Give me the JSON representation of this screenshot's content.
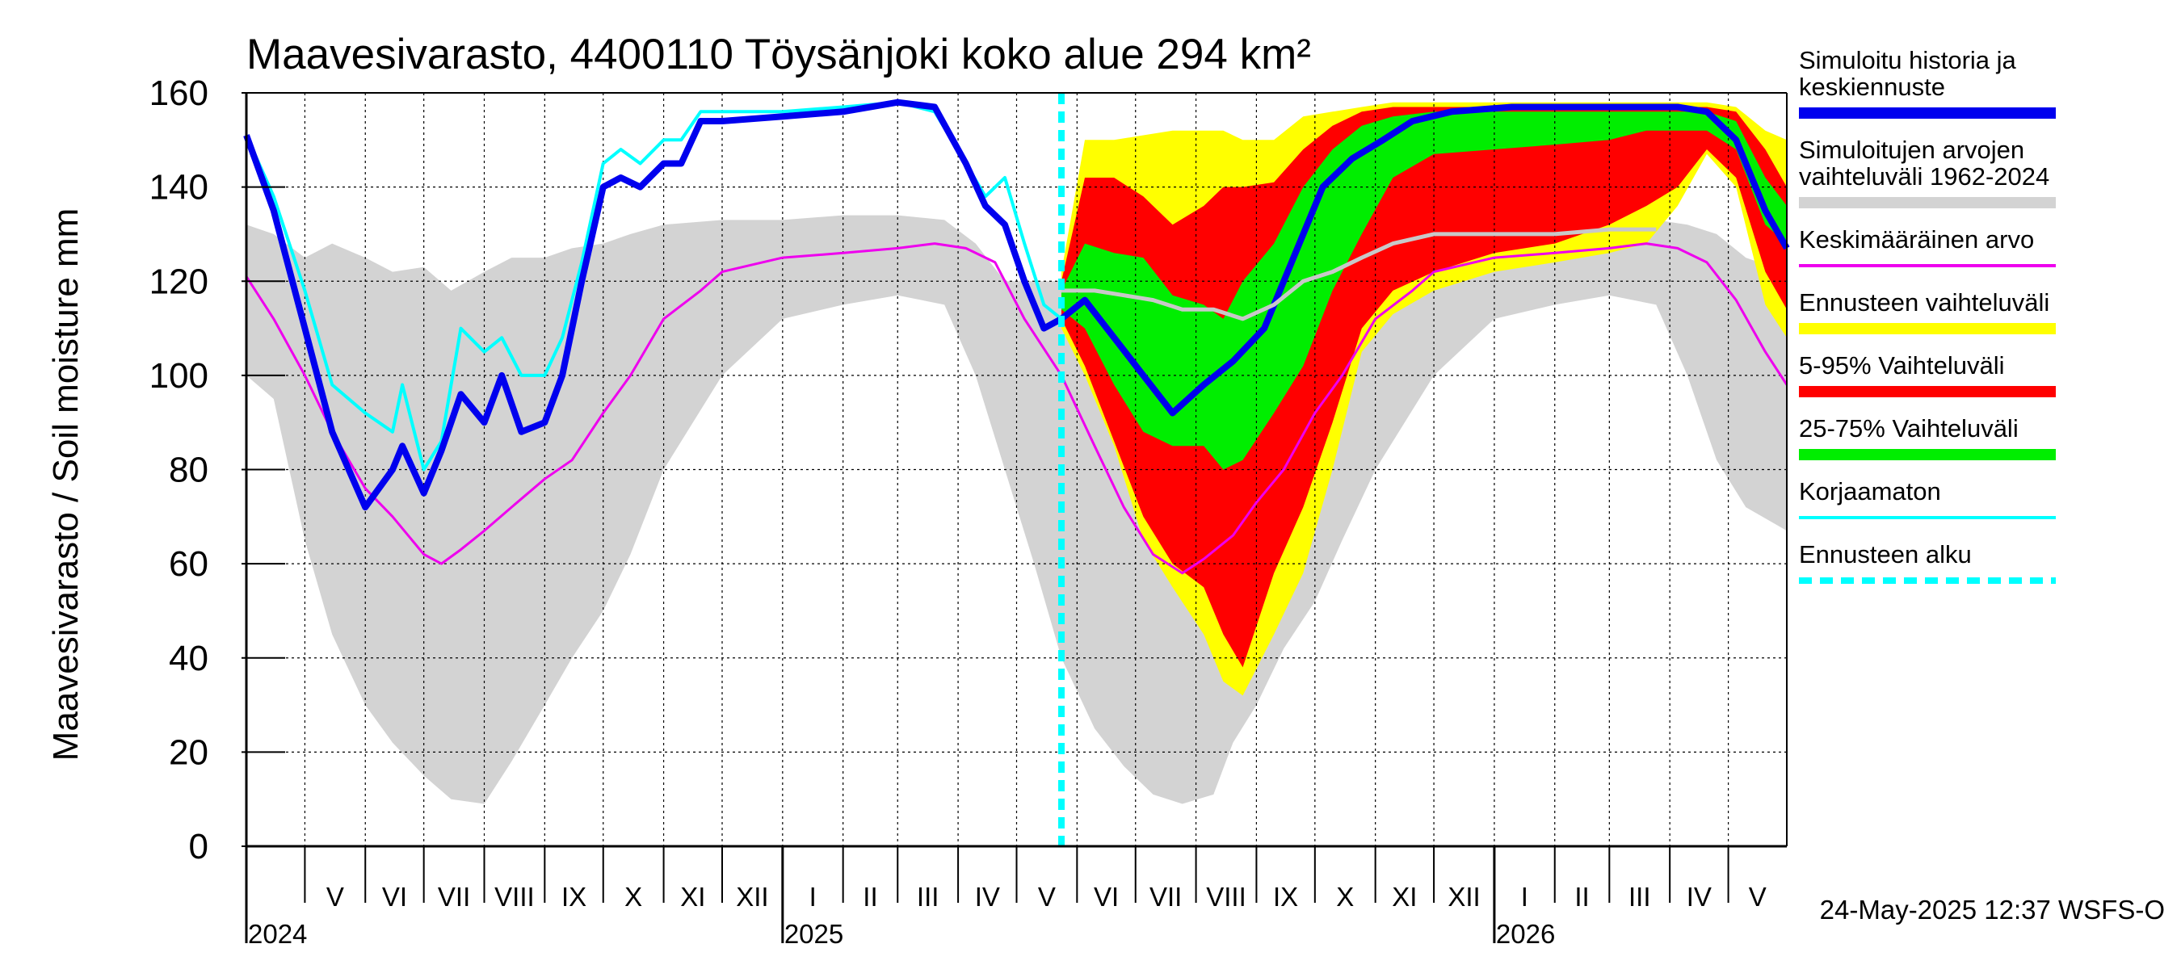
{
  "chart_data": {
    "type": "line",
    "title": "Maavesivarasto, 4400110 Töysänjoki koko alue 294 km²",
    "ylabel": "Maavesivarasto / Soil moisture   mm",
    "ylim": [
      0,
      160
    ],
    "yticks": [
      0,
      20,
      40,
      60,
      80,
      100,
      120,
      140,
      160
    ],
    "x_range": [
      "2024-04-01",
      "2026-05-31"
    ],
    "grid": true,
    "months": [
      "V",
      "VI",
      "VII",
      "VIII",
      "IX",
      "X",
      "XI",
      "XII",
      "I",
      "II",
      "III",
      "IV",
      "V",
      "VI",
      "VII",
      "VIII",
      "IX",
      "X",
      "XI",
      "XII",
      "I",
      "II",
      "III",
      "IV",
      "V"
    ],
    "years": [
      "2024",
      "2025",
      "2026"
    ],
    "forecast_start": "2025-05-24",
    "timestamp": "24-May-2025 12:37 WSFS-O",
    "legend": [
      {
        "label": [
          "Simuloitu historia ja",
          "keskiennuste"
        ],
        "color": "#0000ee",
        "style": "thick"
      },
      {
        "label": [
          "Simuloitujen arvojen",
          "vaihteluväli 1962-2024"
        ],
        "color": "#d3d3d3",
        "style": "thick"
      },
      {
        "label": [
          "Keskimääräinen arvo"
        ],
        "color": "#ee00ee",
        "style": "thin"
      },
      {
        "label": [
          "Ennusteen vaihteluväli"
        ],
        "color": "#ffff00",
        "style": "thick"
      },
      {
        "label": [
          "5-95% Vaihteluväli"
        ],
        "color": "#ff0000",
        "style": "thick"
      },
      {
        "label": [
          "25-75% Vaihteluväli"
        ],
        "color": "#00ee00",
        "style": "thick"
      },
      {
        "label": [
          "Korjaamaton"
        ],
        "color": "#00ffff",
        "style": "thin"
      },
      {
        "label": [
          "Ennusteen alku"
        ],
        "color": "#00ffff",
        "style": "dashed"
      }
    ],
    "series": [
      {
        "name": "Simuloitujen arvojen vaihteluväli 1962-2024",
        "kind": "band",
        "color": "#d3d3d3",
        "x": [
          "2024-04-01",
          "2024-04-15",
          "2024-05-01",
          "2024-05-15",
          "2024-06-01",
          "2024-06-15",
          "2024-07-01",
          "2024-07-15",
          "2024-08-01",
          "2024-08-15",
          "2024-09-01",
          "2024-09-15",
          "2024-10-01",
          "2024-10-15",
          "2024-11-01",
          "2024-12-01",
          "2025-01-01",
          "2025-02-01",
          "2025-03-01",
          "2025-03-25",
          "2025-04-10",
          "2025-04-25",
          "2025-05-10",
          "2025-05-24",
          "2025-06-10",
          "2025-06-25",
          "2025-07-10",
          "2025-07-25",
          "2025-08-10",
          "2025-08-20",
          "2025-09-01",
          "2025-09-15",
          "2025-10-01",
          "2025-10-15",
          "2025-11-01",
          "2025-12-01",
          "2026-01-01",
          "2026-02-01",
          "2026-03-01",
          "2026-03-25",
          "2026-04-10",
          "2026-04-25",
          "2026-05-10",
          "2026-05-31"
        ],
        "lower": [
          100,
          95,
          65,
          45,
          30,
          22,
          15,
          10,
          9,
          18,
          30,
          40,
          50,
          62,
          80,
          100,
          112,
          115,
          117,
          115,
          100,
          80,
          60,
          40,
          25,
          17,
          11,
          9,
          11,
          22,
          30,
          42,
          52,
          65,
          80,
          100,
          112,
          115,
          117,
          115,
          100,
          82,
          72,
          67
        ],
        "upper": [
          132,
          130,
          125,
          128,
          125,
          122,
          123,
          118,
          122,
          125,
          125,
          127,
          128,
          130,
          132,
          133,
          133,
          134,
          134,
          133,
          128,
          120,
          120,
          120,
          126,
          128,
          128,
          128,
          126,
          125,
          126,
          128,
          130,
          131,
          132,
          133,
          133,
          134,
          134,
          133,
          132,
          130,
          125,
          122
        ]
      },
      {
        "name": "Ennusteen vaihteluväli",
        "kind": "band",
        "color": "#ffff00",
        "x": [
          "2025-05-24",
          "2025-06-05",
          "2025-06-20",
          "2025-07-05",
          "2025-07-20",
          "2025-08-05",
          "2025-08-15",
          "2025-08-25",
          "2025-09-10",
          "2025-09-25",
          "2025-10-10",
          "2025-10-25",
          "2025-11-10",
          "2025-12-01",
          "2026-01-01",
          "2026-02-01",
          "2026-03-01",
          "2026-03-20",
          "2026-04-05",
          "2026-04-20",
          "2026-05-05",
          "2026-05-20",
          "2026-05-31"
        ],
        "lower": [
          110,
          100,
          85,
          65,
          55,
          45,
          35,
          32,
          45,
          58,
          80,
          105,
          113,
          118,
          122,
          124,
          126,
          128,
          136,
          147,
          140,
          115,
          108
        ],
        "upper": [
          122,
          150,
          150,
          151,
          152,
          152,
          152,
          150,
          150,
          155,
          156,
          157,
          158,
          158,
          158,
          158,
          158,
          158,
          158,
          158,
          157,
          152,
          150
        ]
      },
      {
        "name": "5-95% Vaihteluväli",
        "kind": "band",
        "color": "#ff0000",
        "x": [
          "2025-05-24",
          "2025-06-05",
          "2025-06-20",
          "2025-07-05",
          "2025-07-20",
          "2025-08-05",
          "2025-08-15",
          "2025-08-25",
          "2025-09-10",
          "2025-09-25",
          "2025-10-10",
          "2025-10-25",
          "2025-11-10",
          "2025-12-01",
          "2026-01-01",
          "2026-02-01",
          "2026-03-01",
          "2026-03-20",
          "2026-04-05",
          "2026-04-20",
          "2026-05-05",
          "2026-05-20",
          "2026-05-31"
        ],
        "lower": [
          112,
          102,
          86,
          70,
          60,
          55,
          45,
          38,
          58,
          72,
          90,
          110,
          118,
          122,
          126,
          128,
          132,
          136,
          140,
          148,
          142,
          122,
          114
        ],
        "upper": [
          120,
          142,
          142,
          138,
          132,
          136,
          140,
          140,
          141,
          148,
          153,
          156,
          157,
          157,
          157,
          157,
          157,
          157,
          157,
          157,
          156,
          148,
          140
        ]
      },
      {
        "name": "25-75% Vaihteluväli",
        "kind": "band",
        "color": "#00ee00",
        "x": [
          "2025-05-24",
          "2025-06-05",
          "2025-06-20",
          "2025-07-05",
          "2025-07-20",
          "2025-08-05",
          "2025-08-15",
          "2025-08-25",
          "2025-09-10",
          "2025-09-25",
          "2025-10-10",
          "2025-10-25",
          "2025-11-10",
          "2025-12-01",
          "2026-01-01",
          "2026-02-01",
          "2026-03-01",
          "2026-03-20",
          "2026-04-05",
          "2026-04-20",
          "2026-05-05",
          "2026-05-20",
          "2026-05-31"
        ],
        "lower": [
          114,
          110,
          98,
          88,
          85,
          85,
          80,
          82,
          92,
          102,
          118,
          130,
          142,
          147,
          148,
          149,
          150,
          152,
          152,
          152,
          148,
          132,
          128
        ],
        "upper": [
          118,
          128,
          126,
          125,
          117,
          115,
          112,
          120,
          128,
          140,
          148,
          153,
          155,
          156,
          156,
          156,
          156,
          156,
          156,
          156,
          154,
          142,
          136
        ]
      },
      {
        "name": "Keskimääräinen arvo",
        "kind": "line",
        "color": "#ee00ee",
        "width": 3,
        "x": [
          "2024-04-01",
          "2024-04-15",
          "2024-05-01",
          "2024-05-15",
          "2024-06-01",
          "2024-06-15",
          "2024-07-01",
          "2024-07-10",
          "2024-07-20",
          "2024-08-01",
          "2024-08-15",
          "2024-09-01",
          "2024-09-15",
          "2024-10-01",
          "2024-10-15",
          "2024-11-01",
          "2024-11-20",
          "2024-12-01",
          "2025-01-01",
          "2025-02-01",
          "2025-03-01",
          "2025-03-20",
          "2025-04-05",
          "2025-04-20",
          "2025-05-05",
          "2025-05-24",
          "2025-06-10",
          "2025-06-25",
          "2025-07-10",
          "2025-07-25",
          "2025-08-05",
          "2025-08-20",
          "2025-09-01",
          "2025-09-15",
          "2025-10-01",
          "2025-10-15",
          "2025-11-01",
          "2025-11-20",
          "2025-12-01",
          "2026-01-01",
          "2026-02-01",
          "2026-03-01",
          "2026-03-20",
          "2026-04-05",
          "2026-04-20",
          "2026-05-05",
          "2026-05-20",
          "2026-05-31"
        ],
        "y": [
          121,
          112,
          100,
          88,
          76,
          70,
          62,
          60,
          63,
          67,
          72,
          78,
          82,
          92,
          100,
          112,
          118,
          122,
          125,
          126,
          127,
          128,
          127,
          124,
          112,
          100,
          85,
          72,
          62,
          58,
          61,
          66,
          73,
          80,
          92,
          100,
          112,
          118,
          122,
          125,
          126,
          127,
          128,
          127,
          124,
          116,
          105,
          98
        ]
      },
      {
        "name": "Korjaamaton",
        "kind": "line",
        "color": "#00ffff",
        "width": 4,
        "x": [
          "2024-04-01",
          "2024-04-15",
          "2024-05-01",
          "2024-05-15",
          "2024-06-01",
          "2024-06-15",
          "2024-06-20",
          "2024-07-01",
          "2024-07-10",
          "2024-07-20",
          "2024-08-01",
          "2024-08-10",
          "2024-08-20",
          "2024-09-01",
          "2024-09-10",
          "2024-09-20",
          "2024-10-01",
          "2024-10-10",
          "2024-10-20",
          "2024-11-01",
          "2024-11-10",
          "2024-11-20",
          "2024-12-01",
          "2025-01-01",
          "2025-02-01",
          "2025-03-01",
          "2025-03-20",
          "2025-04-05",
          "2025-04-15",
          "2025-04-25",
          "2025-05-05",
          "2025-05-15",
          "2025-05-24"
        ],
        "y": [
          151,
          138,
          118,
          98,
          92,
          88,
          98,
          80,
          86,
          110,
          105,
          108,
          100,
          100,
          108,
          124,
          145,
          148,
          145,
          150,
          150,
          156,
          156,
          156,
          157,
          158,
          156,
          145,
          138,
          142,
          128,
          115,
          112
        ]
      },
      {
        "name": "Simuloitu historia ja keskiennuste",
        "kind": "line",
        "color": "#0000ee",
        "width": 8,
        "x": [
          "2024-04-01",
          "2024-04-15",
          "2024-05-01",
          "2024-05-15",
          "2024-06-01",
          "2024-06-15",
          "2024-06-20",
          "2024-07-01",
          "2024-07-10",
          "2024-07-20",
          "2024-08-01",
          "2024-08-10",
          "2024-08-20",
          "2024-09-01",
          "2024-09-10",
          "2024-09-20",
          "2024-10-01",
          "2024-10-10",
          "2024-10-20",
          "2024-11-01",
          "2024-11-10",
          "2024-11-20",
          "2024-12-01",
          "2025-01-01",
          "2025-02-01",
          "2025-03-01",
          "2025-03-20",
          "2025-04-05",
          "2025-04-15",
          "2025-04-25",
          "2025-05-05",
          "2025-05-15",
          "2025-05-24",
          "2025-06-05",
          "2025-06-20",
          "2025-07-05",
          "2025-07-20",
          "2025-08-05",
          "2025-08-20",
          "2025-09-05",
          "2025-09-20",
          "2025-10-05",
          "2025-10-20",
          "2025-11-05",
          "2025-11-20",
          "2025-12-10",
          "2026-01-10",
          "2026-02-10",
          "2026-03-10",
          "2026-04-05",
          "2026-04-20",
          "2026-05-05",
          "2026-05-20",
          "2026-05-31"
        ],
        "y": [
          151,
          135,
          110,
          88,
          72,
          80,
          85,
          75,
          84,
          96,
          90,
          100,
          88,
          90,
          100,
          120,
          140,
          142,
          140,
          145,
          145,
          154,
          154,
          155,
          156,
          158,
          157,
          145,
          136,
          132,
          120,
          110,
          112,
          116,
          108,
          100,
          92,
          98,
          103,
          110,
          125,
          140,
          146,
          150,
          154,
          156,
          157,
          157,
          157,
          157,
          156,
          150,
          135,
          127
        ]
      },
      {
        "name": "Simuloitu keskiarvo (grey line)",
        "kind": "line",
        "color": "#c8c8c8",
        "width": 5,
        "x": [
          "2025-05-24",
          "2025-06-10",
          "2025-06-25",
          "2025-07-10",
          "2025-07-25",
          "2025-08-10",
          "2025-08-25",
          "2025-09-10",
          "2025-09-25",
          "2025-10-10",
          "2025-10-25",
          "2025-11-10",
          "2025-12-01",
          "2026-01-01",
          "2026-02-01",
          "2026-03-01",
          "2026-03-25"
        ],
        "y": [
          118,
          118,
          117,
          116,
          114,
          114,
          112,
          115,
          120,
          122,
          125,
          128,
          130,
          130,
          130,
          131,
          131
        ]
      }
    ]
  }
}
